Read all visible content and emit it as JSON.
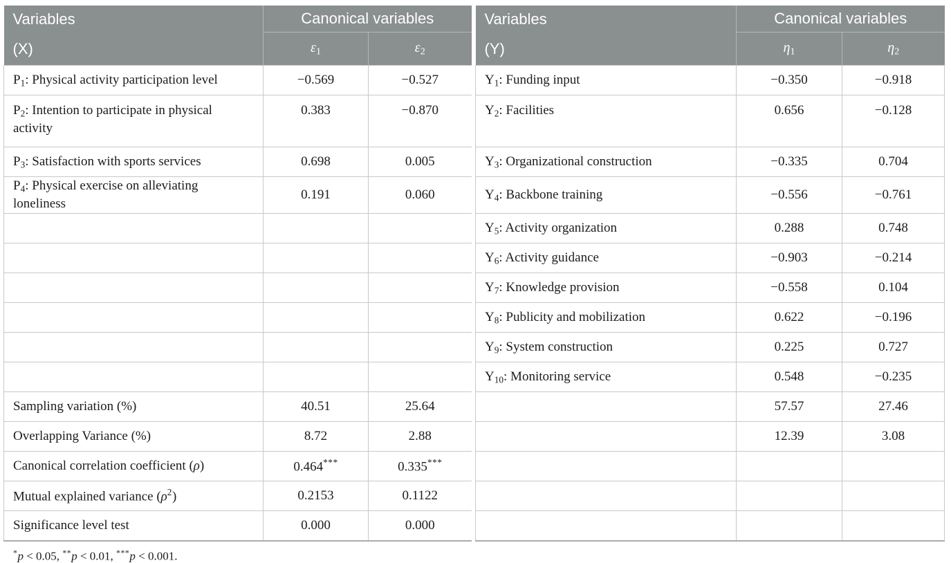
{
  "colors": {
    "header_bg": "#8a8f90",
    "header_divider": "#b4b8b9",
    "header_text": "#ffffff",
    "row_border": "#c6c9c9",
    "outer_border": "#a9adad",
    "text": "#1c1c1c",
    "page_bg": "#ffffff"
  },
  "header": {
    "x_title_line1": "Variables",
    "x_title_line2": "(X)",
    "x_canonical": "Canonical variables",
    "y_title_line1": "Variables",
    "y_title_line2": "(Y)",
    "y_canonical": "Canonical variables",
    "eps1": [
      {
        "t": "ε",
        "s": "i"
      },
      {
        "t": "1",
        "s": "sub"
      }
    ],
    "eps2": [
      {
        "t": "ε",
        "s": "i"
      },
      {
        "t": "2",
        "s": "sub"
      }
    ],
    "eta1": [
      {
        "t": "η",
        "s": "i"
      },
      {
        "t": "1",
        "s": "sub"
      }
    ],
    "eta2": [
      {
        "t": "η",
        "s": "i"
      },
      {
        "t": "2",
        "s": "sub"
      }
    ]
  },
  "rows": [
    {
      "tall": false,
      "x": [
        {
          "t": "P"
        },
        {
          "t": "1",
          "s": "sub"
        },
        {
          "t": ": Physical activity participation level"
        }
      ],
      "e1": "−0.569",
      "e2": "−0.527",
      "y": [
        {
          "t": "Y"
        },
        {
          "t": "1",
          "s": "sub"
        },
        {
          "t": ": Funding input"
        }
      ],
      "n1": "−0.350",
      "n2": "−0.918"
    },
    {
      "tall": true,
      "x": [
        {
          "t": "P"
        },
        {
          "t": "2",
          "s": "sub"
        },
        {
          "t": ": Intention to participate in physical activity"
        }
      ],
      "e1": "0.383",
      "e2": "−0.870",
      "y": [
        {
          "t": "Y"
        },
        {
          "t": "2",
          "s": "sub"
        },
        {
          "t": ": Facilities"
        }
      ],
      "n1": "0.656",
      "n2": "−0.128"
    },
    {
      "tall": false,
      "x": [
        {
          "t": "P"
        },
        {
          "t": "3",
          "s": "sub"
        },
        {
          "t": ": Satisfaction with sports services"
        }
      ],
      "e1": "0.698",
      "e2": "0.005",
      "y": [
        {
          "t": "Y"
        },
        {
          "t": "3",
          "s": "sub"
        },
        {
          "t": ": Organizational construction"
        }
      ],
      "n1": "−0.335",
      "n2": "0.704"
    },
    {
      "tall": false,
      "x": [
        {
          "t": "P"
        },
        {
          "t": "4",
          "s": "sub"
        },
        {
          "t": ": Physical exercise on alleviating loneliness"
        }
      ],
      "e1": "0.191",
      "e2": "0.060",
      "y": [
        {
          "t": "Y"
        },
        {
          "t": "4",
          "s": "sub"
        },
        {
          "t": ": Backbone training"
        }
      ],
      "n1": "−0.556",
      "n2": "−0.761"
    },
    {
      "tall": false,
      "x": null,
      "e1": "",
      "e2": "",
      "y": [
        {
          "t": "Y"
        },
        {
          "t": "5",
          "s": "sub"
        },
        {
          "t": ": Activity organization"
        }
      ],
      "n1": "0.288",
      "n2": "0.748"
    },
    {
      "tall": false,
      "x": null,
      "e1": "",
      "e2": "",
      "y": [
        {
          "t": "Y"
        },
        {
          "t": "6",
          "s": "sub"
        },
        {
          "t": ": Activity guidance"
        }
      ],
      "n1": "−0.903",
      "n2": "−0.214"
    },
    {
      "tall": false,
      "x": null,
      "e1": "",
      "e2": "",
      "y": [
        {
          "t": "Y"
        },
        {
          "t": "7",
          "s": "sub"
        },
        {
          "t": ": Knowledge provision"
        }
      ],
      "n1": "−0.558",
      "n2": "0.104"
    },
    {
      "tall": false,
      "x": null,
      "e1": "",
      "e2": "",
      "y": [
        {
          "t": "Y"
        },
        {
          "t": "8",
          "s": "sub"
        },
        {
          "t": ": Publicity and mobilization"
        }
      ],
      "n1": "0.622",
      "n2": "−0.196"
    },
    {
      "tall": false,
      "x": null,
      "e1": "",
      "e2": "",
      "y": [
        {
          "t": "Y"
        },
        {
          "t": "9",
          "s": "sub"
        },
        {
          "t": ": System construction"
        }
      ],
      "n1": "0.225",
      "n2": "0.727"
    },
    {
      "tall": false,
      "x": null,
      "e1": "",
      "e2": "",
      "y": [
        {
          "t": "Y"
        },
        {
          "t": "10",
          "s": "sub"
        },
        {
          "t": ": Monitoring service"
        }
      ],
      "n1": "0.548",
      "n2": "−0.235"
    },
    {
      "tall": false,
      "x": [
        {
          "t": "Sampling variation (%)"
        }
      ],
      "e1": "40.51",
      "e2": "25.64",
      "y": null,
      "n1": "57.57",
      "n2": "27.46"
    },
    {
      "tall": false,
      "x": [
        {
          "t": "Overlapping Variance (%)"
        }
      ],
      "e1": "8.72",
      "e2": "2.88",
      "y": null,
      "n1": "12.39",
      "n2": "3.08"
    },
    {
      "tall": false,
      "x": [
        {
          "t": "Canonical correlation coefficient ("
        },
        {
          "t": "ρ",
          "s": "i"
        },
        {
          "t": ")"
        }
      ],
      "e1": [
        {
          "t": "0.464"
        },
        {
          "t": "***",
          "s": "sup"
        }
      ],
      "e2": [
        {
          "t": "0.335"
        },
        {
          "t": "***",
          "s": "sup"
        }
      ],
      "y": null,
      "n1": "",
      "n2": ""
    },
    {
      "tall": false,
      "x": [
        {
          "t": "Mutual explained variance ("
        },
        {
          "t": "ρ",
          "s": "i"
        },
        {
          "t": "2",
          "s": "sup"
        },
        {
          "t": ")"
        }
      ],
      "e1": "0.2153",
      "e2": "0.1122",
      "y": null,
      "n1": "",
      "n2": ""
    },
    {
      "tall": false,
      "x": [
        {
          "t": "Significance level test"
        }
      ],
      "e1": "0.000",
      "e2": "0.000",
      "y": null,
      "n1": "",
      "n2": ""
    }
  ],
  "footnote": [
    {
      "t": "*",
      "s": "sup"
    },
    {
      "t": "p",
      "s": "i"
    },
    {
      "t": " < 0.05, "
    },
    {
      "t": "**",
      "s": "sup"
    },
    {
      "t": "p",
      "s": "i"
    },
    {
      "t": " < 0.01, "
    },
    {
      "t": "***",
      "s": "sup"
    },
    {
      "t": "p",
      "s": "i"
    },
    {
      "t": " < 0.001."
    }
  ]
}
